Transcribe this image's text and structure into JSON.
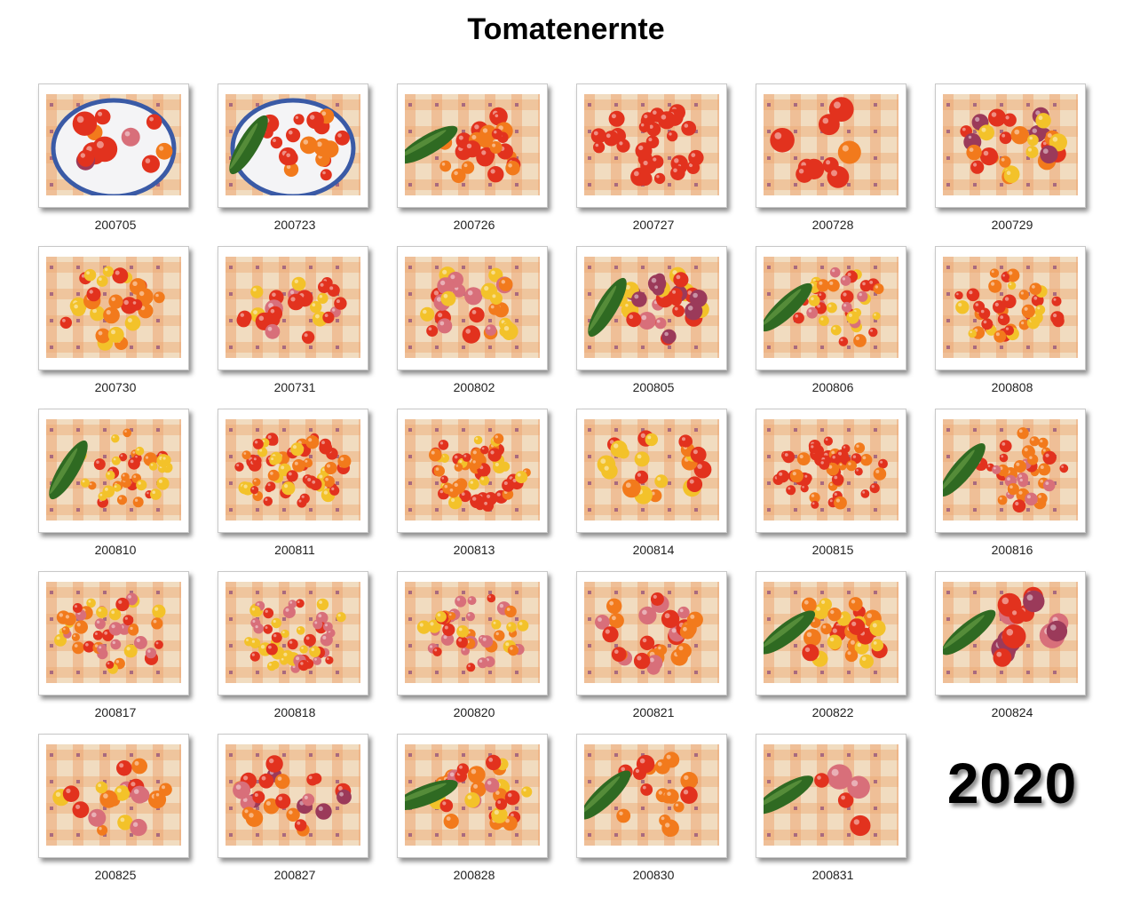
{
  "title": "Tomatenernte",
  "year": "2020",
  "colors": {
    "cloth": "#f1dcc0",
    "check_orange": "#eda874",
    "check_purple": "#8c4a7a",
    "tomato_red": "#e2321e",
    "tomato_orange": "#f27a1c",
    "tomato_yellow": "#f3c22a",
    "tomato_pink": "#d86f7a",
    "cucumber": "#2f6a22"
  },
  "photos": [
    {
      "label": "200705",
      "cucumber": false,
      "plate": true,
      "count": 12,
      "palette": [
        "red",
        "red",
        "pink",
        "purple",
        "orange"
      ]
    },
    {
      "label": "200723",
      "cucumber": true,
      "plate": true,
      "count": 18,
      "palette": [
        "red",
        "red",
        "red",
        "orange"
      ]
    },
    {
      "label": "200726",
      "cucumber": true,
      "plate": false,
      "count": 24,
      "palette": [
        "red",
        "red",
        "orange"
      ]
    },
    {
      "label": "200727",
      "cucumber": false,
      "plate": false,
      "count": 30,
      "palette": [
        "red",
        "red",
        "red"
      ]
    },
    {
      "label": "200728",
      "cucumber": false,
      "plate": false,
      "count": 10,
      "palette": [
        "red",
        "orange",
        "red"
      ]
    },
    {
      "label": "200729",
      "cucumber": false,
      "plate": false,
      "count": 30,
      "palette": [
        "red",
        "orange",
        "yellow",
        "purple"
      ]
    },
    {
      "label": "200730",
      "cucumber": false,
      "plate": false,
      "count": 26,
      "palette": [
        "red",
        "orange",
        "yellow",
        "yellow"
      ]
    },
    {
      "label": "200731",
      "cucumber": false,
      "plate": false,
      "count": 24,
      "palette": [
        "red",
        "pink",
        "yellow",
        "red"
      ]
    },
    {
      "label": "200802",
      "cucumber": false,
      "plate": false,
      "count": 28,
      "palette": [
        "red",
        "pink",
        "yellow",
        "orange"
      ]
    },
    {
      "label": "200805",
      "cucumber": true,
      "plate": false,
      "count": 30,
      "palette": [
        "pink",
        "red",
        "purple",
        "yellow"
      ]
    },
    {
      "label": "200806",
      "cucumber": true,
      "plate": false,
      "count": 40,
      "palette": [
        "red",
        "pink",
        "orange",
        "yellow"
      ]
    },
    {
      "label": "200808",
      "cucumber": false,
      "plate": false,
      "count": 40,
      "palette": [
        "red",
        "red",
        "yellow",
        "orange"
      ]
    },
    {
      "label": "200810",
      "cucumber": true,
      "plate": false,
      "count": 38,
      "palette": [
        "red",
        "yellow",
        "yellow",
        "orange"
      ]
    },
    {
      "label": "200811",
      "cucumber": false,
      "plate": false,
      "count": 60,
      "palette": [
        "red",
        "red",
        "orange",
        "yellow"
      ]
    },
    {
      "label": "200813",
      "cucumber": false,
      "plate": false,
      "count": 56,
      "palette": [
        "red",
        "red",
        "orange",
        "yellow"
      ]
    },
    {
      "label": "200814",
      "cucumber": false,
      "plate": false,
      "count": 22,
      "palette": [
        "red",
        "yellow",
        "orange"
      ]
    },
    {
      "label": "200815",
      "cucumber": false,
      "plate": false,
      "count": 50,
      "palette": [
        "red",
        "red",
        "red",
        "orange"
      ]
    },
    {
      "label": "200816",
      "cucumber": true,
      "plate": false,
      "count": 34,
      "palette": [
        "red",
        "pink",
        "orange"
      ]
    },
    {
      "label": "200817",
      "cucumber": false,
      "plate": false,
      "count": 44,
      "palette": [
        "red",
        "yellow",
        "orange",
        "pink"
      ]
    },
    {
      "label": "200818",
      "cucumber": false,
      "plate": false,
      "count": 48,
      "palette": [
        "red",
        "pink",
        "yellow"
      ]
    },
    {
      "label": "200820",
      "cucumber": false,
      "plate": false,
      "count": 40,
      "palette": [
        "red",
        "pink",
        "yellow",
        "orange"
      ]
    },
    {
      "label": "200821",
      "cucumber": false,
      "plate": false,
      "count": 28,
      "palette": [
        "red",
        "pink",
        "orange"
      ]
    },
    {
      "label": "200822",
      "cucumber": true,
      "plate": false,
      "count": 30,
      "palette": [
        "red",
        "orange",
        "yellow"
      ]
    },
    {
      "label": "200824",
      "cucumber": true,
      "plate": false,
      "count": 14,
      "palette": [
        "pink",
        "red",
        "purple"
      ]
    },
    {
      "label": "200825",
      "cucumber": false,
      "plate": false,
      "count": 20,
      "palette": [
        "pink",
        "orange",
        "yellow",
        "red"
      ]
    },
    {
      "label": "200827",
      "cucumber": false,
      "plate": false,
      "count": 24,
      "palette": [
        "red",
        "orange",
        "purple",
        "pink"
      ]
    },
    {
      "label": "200828",
      "cucumber": true,
      "plate": false,
      "count": 30,
      "palette": [
        "red",
        "pink",
        "yellow",
        "orange"
      ]
    },
    {
      "label": "200830",
      "cucumber": true,
      "plate": false,
      "count": 16,
      "palette": [
        "red",
        "orange"
      ]
    },
    {
      "label": "200831",
      "cucumber": true,
      "plate": false,
      "count": 5,
      "palette": [
        "red",
        "pink"
      ]
    }
  ]
}
